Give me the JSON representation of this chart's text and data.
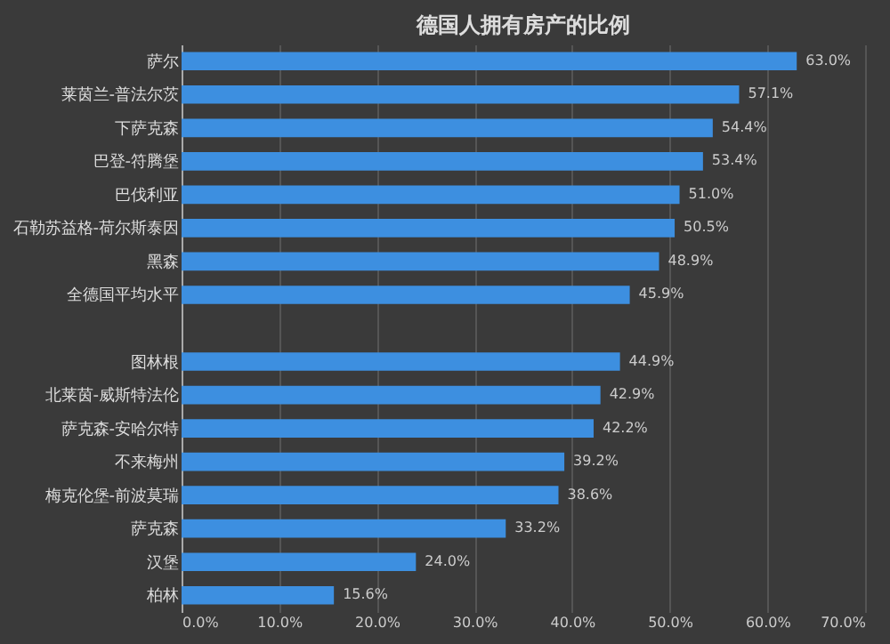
{
  "chart_data": {
    "type": "bar",
    "orientation": "horizontal",
    "title": "德国人拥有房产的比例",
    "categories": [
      "萨尔",
      "莱茵兰-普法尔茨",
      "下萨克森",
      "巴登-符腾堡",
      "巴伐利亚",
      "石勒苏益格-荷尔斯泰因",
      "黑森",
      "全德国平均水平",
      null,
      "图林根",
      "北莱茵-威斯特法伦",
      "萨克森-安哈尔特",
      "不来梅州",
      "梅克伦堡-前波莫瑞",
      "萨克森",
      "汉堡",
      "柏林"
    ],
    "values": [
      63.0,
      57.1,
      54.4,
      53.4,
      51.0,
      50.5,
      48.9,
      45.9,
      null,
      44.9,
      42.9,
      42.2,
      39.2,
      38.6,
      33.2,
      24.0,
      15.6
    ],
    "value_labels": [
      "63.0%",
      "57.1%",
      "54.4%",
      "53.4%",
      "51.0%",
      "50.5%",
      "48.9%",
      "45.9%",
      null,
      "44.9%",
      "42.9%",
      "42.2%",
      "39.2%",
      "38.6%",
      "33.2%",
      "24.0%",
      "15.6%"
    ],
    "color": "#3d8fe0",
    "xlim": [
      0,
      70
    ],
    "xticks": [
      {
        "value": 0,
        "label": "0.0%"
      },
      {
        "value": 10,
        "label": "10.0%"
      },
      {
        "value": 20,
        "label": "20.0%"
      },
      {
        "value": 30,
        "label": "30.0%"
      },
      {
        "value": 40,
        "label": "40.0%"
      },
      {
        "value": 50,
        "label": "50.0%"
      },
      {
        "value": 60,
        "label": "60.0%"
      },
      {
        "value": 70,
        "label": "70.0%"
      }
    ],
    "grid": "x"
  }
}
